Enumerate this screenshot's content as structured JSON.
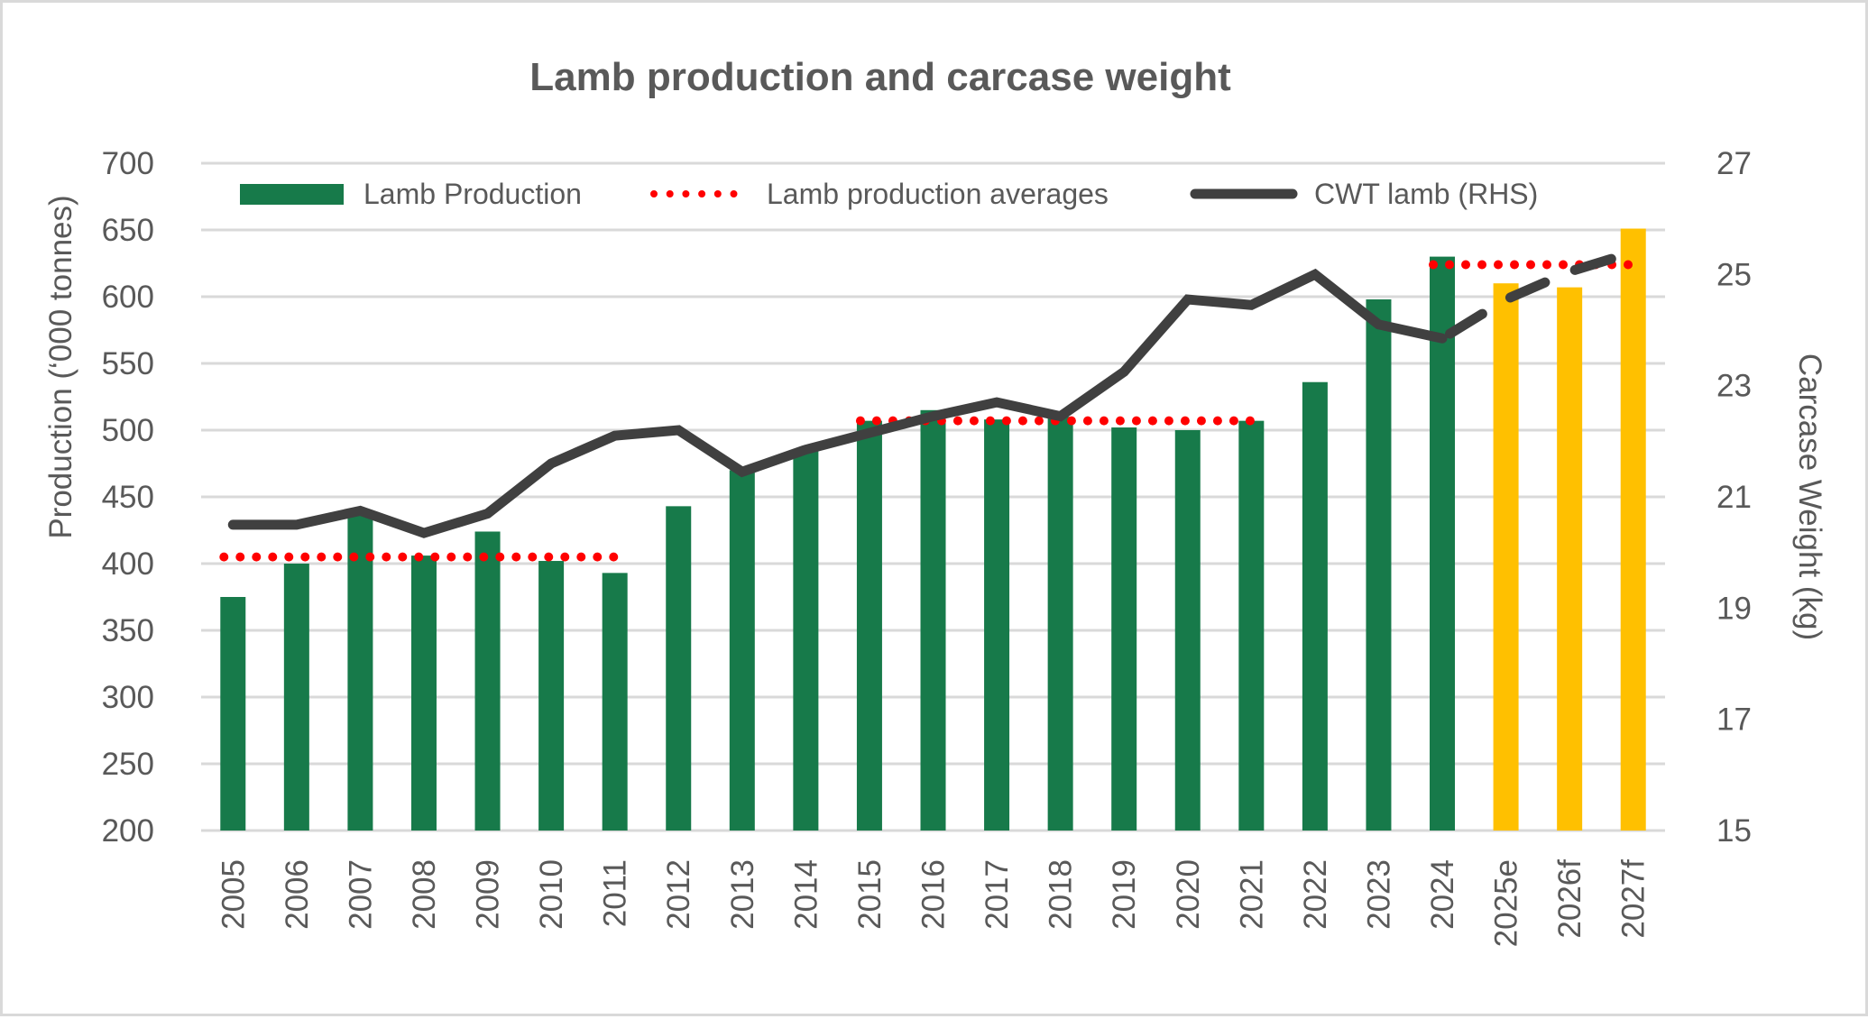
{
  "chart_data": {
    "type": "bar",
    "title": "Lamb production and carcase weight",
    "categories": [
      "2005",
      "2006",
      "2007",
      "2008",
      "2009",
      "2010",
      "2011",
      "2012",
      "2013",
      "2014",
      "2015",
      "2016",
      "2017",
      "2018",
      "2019",
      "2020",
      "2021",
      "2022",
      "2023",
      "2024",
      "2025e",
      "2026f",
      "2027f"
    ],
    "xlabel": "",
    "ylabel": "Production (‘000 tonnes)",
    "y2label": "Carcase Weight (kg)",
    "ylim": [
      200,
      700
    ],
    "y2lim": [
      15,
      27
    ],
    "yticks": [
      200,
      250,
      300,
      350,
      400,
      450,
      500,
      550,
      600,
      650,
      700
    ],
    "y2ticks": [
      15,
      17,
      19,
      21,
      23,
      25,
      27
    ],
    "grid": true,
    "legend_position": "top",
    "series": [
      {
        "name": "Lamb Production",
        "type": "bar",
        "axis": "left",
        "color": "#177A4A",
        "forecast_color": "#FFC000",
        "forecast_from_index": 20,
        "values": [
          375,
          400,
          436,
          406,
          424,
          402,
          393,
          443,
          470,
          485,
          507,
          515,
          508,
          510,
          502,
          500,
          507,
          536,
          598,
          630,
          610,
          607,
          651
        ]
      },
      {
        "name": "Lamb production averages",
        "type": "line",
        "style": "dotted",
        "axis": "left",
        "color": "#FF0000",
        "segments": [
          {
            "from": "2005",
            "to": "2011",
            "value": 405
          },
          {
            "from": "2015",
            "to": "2021",
            "value": 507
          },
          {
            "from": "2024",
            "to": "2027f",
            "value": 624
          }
        ]
      },
      {
        "name": "CWT lamb (RHS)",
        "type": "line",
        "style": "solid",
        "dashed_from_index": 19,
        "axis": "right",
        "color": "#404040",
        "values": [
          20.5,
          20.5,
          20.75,
          20.35,
          20.7,
          21.6,
          22.1,
          22.2,
          21.45,
          21.85,
          22.15,
          22.45,
          22.7,
          22.45,
          23.25,
          24.55,
          24.45,
          25.0,
          24.1,
          23.85,
          24.55,
          25.05,
          25.4
        ]
      }
    ]
  }
}
